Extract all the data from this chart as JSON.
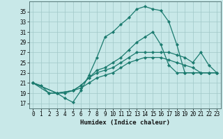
{
  "xlabel": "Humidex (Indice chaleur)",
  "ylabel": "",
  "bg_color": "#c8e8e8",
  "grid_color": "#a0c8c8",
  "line_color": "#1a7a6e",
  "marker": "D",
  "marker_size": 2.2,
  "xlim": [
    -0.5,
    23.5
  ],
  "ylim": [
    16.0,
    37.0
  ],
  "yticks": [
    17,
    19,
    21,
    23,
    25,
    27,
    29,
    31,
    33,
    35
  ],
  "xticks": [
    0,
    1,
    2,
    3,
    4,
    5,
    6,
    7,
    8,
    9,
    10,
    11,
    12,
    13,
    14,
    15,
    16,
    17,
    18,
    19,
    20,
    21,
    22,
    23
  ],
  "series": [
    {
      "x": [
        0,
        1,
        2,
        3,
        4,
        5,
        6,
        7,
        8,
        9,
        10,
        11,
        12,
        13,
        14,
        15,
        16,
        17,
        18,
        19,
        20,
        21,
        22,
        23
      ],
      "y": [
        21,
        20.5,
        19,
        19,
        18,
        17.2,
        19.5,
        22.5,
        26,
        30,
        31,
        32.5,
        33.8,
        35.5,
        36,
        35.5,
        35.2,
        33,
        28.5,
        23,
        23,
        23,
        23,
        23
      ]
    },
    {
      "x": [
        0,
        2,
        3,
        4,
        5,
        6,
        7,
        8,
        9,
        10,
        11,
        12,
        13,
        14,
        15,
        16,
        17,
        18,
        19,
        20,
        21,
        22,
        23
      ],
      "y": [
        21,
        19,
        19,
        19,
        19.5,
        20.5,
        22,
        23.5,
        24,
        25,
        26,
        27.5,
        29,
        30,
        31,
        28.5,
        24.5,
        23,
        23,
        23,
        23,
        23,
        23
      ]
    },
    {
      "x": [
        0,
        3,
        5,
        6,
        7,
        8,
        9,
        10,
        11,
        12,
        13,
        14,
        15,
        16,
        17,
        18,
        19,
        20,
        21,
        22,
        23
      ],
      "y": [
        21,
        19,
        19.5,
        20.5,
        22,
        23,
        23.5,
        24,
        25,
        26,
        27,
        27,
        27,
        27,
        27,
        26.5,
        26,
        25,
        27,
        24.5,
        23
      ]
    },
    {
      "x": [
        0,
        3,
        5,
        6,
        7,
        8,
        9,
        10,
        11,
        12,
        13,
        14,
        15,
        16,
        17,
        18,
        19,
        20,
        21,
        22,
        23
      ],
      "y": [
        21,
        19,
        19.5,
        20,
        21,
        22,
        22.5,
        23,
        24,
        25,
        25.5,
        26,
        26,
        26,
        25.5,
        25,
        24.5,
        24,
        23,
        23,
        23
      ]
    }
  ]
}
